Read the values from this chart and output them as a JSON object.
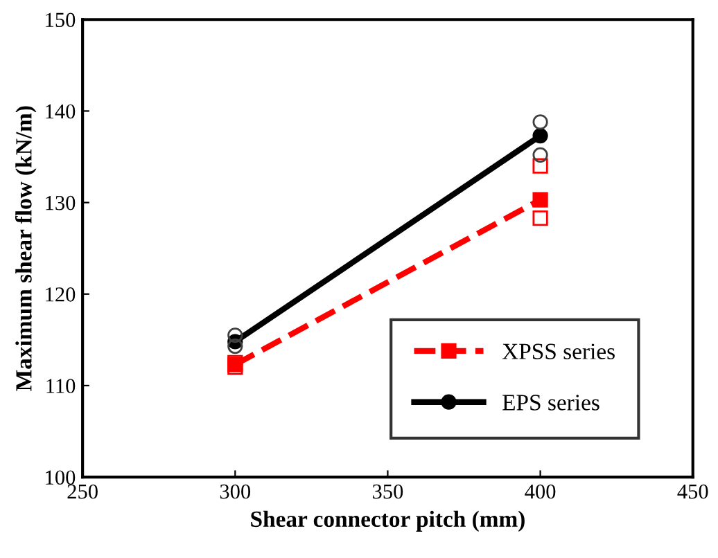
{
  "chart_data": {
    "type": "line",
    "xlabel": "Shear connector pitch (mm)",
    "ylabel": "Maximum shear flow (kN/m)",
    "x": [
      300,
      400
    ],
    "xlim": [
      250,
      450
    ],
    "xticks": [
      250,
      300,
      350,
      400,
      450
    ],
    "ylim": [
      100,
      150
    ],
    "yticks": [
      100,
      110,
      120,
      130,
      140,
      150
    ],
    "grid": false,
    "legend": "bottom right",
    "series": [
      {
        "name": "XPSS series",
        "color": "#ff0000",
        "values": [
          112.3,
          130.3
        ],
        "marker": "square",
        "line_style": "dashed"
      },
      {
        "name": "EPS series",
        "color": "#000000",
        "values": [
          114.8,
          137.3
        ],
        "marker": "circle",
        "line_style": "solid"
      },
      {
        "type": "scatter",
        "color": "#ff0000",
        "values": [
          112,
          134
        ],
        "marker": "square"
      },
      {
        "type": "scatter",
        "color": "#ff0000",
        "values": [
          112.5,
          128.3
        ],
        "marker": "square"
      },
      {
        "type": "scatter",
        "color": "#404040",
        "values": [
          115.5,
          138.8
        ],
        "marker": "circle"
      },
      {
        "type": "scatter",
        "color": "#404040",
        "values": [
          114.3,
          135.2
        ],
        "marker": "circle"
      }
    ]
  }
}
